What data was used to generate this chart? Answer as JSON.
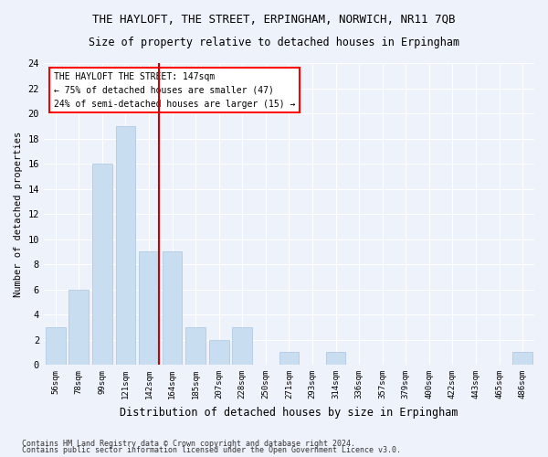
{
  "title": "THE HAYLOFT, THE STREET, ERPINGHAM, NORWICH, NR11 7QB",
  "subtitle": "Size of property relative to detached houses in Erpingham",
  "xlabel": "Distribution of detached houses by size in Erpingham",
  "ylabel": "Number of detached properties",
  "categories": [
    "56sqm",
    "78sqm",
    "99sqm",
    "121sqm",
    "142sqm",
    "164sqm",
    "185sqm",
    "207sqm",
    "228sqm",
    "250sqm",
    "271sqm",
    "293sqm",
    "314sqm",
    "336sqm",
    "357sqm",
    "379sqm",
    "400sqm",
    "422sqm",
    "443sqm",
    "465sqm",
    "486sqm"
  ],
  "values": [
    3,
    6,
    16,
    19,
    9,
    9,
    3,
    2,
    3,
    0,
    1,
    0,
    1,
    0,
    0,
    0,
    0,
    0,
    0,
    0,
    1
  ],
  "bar_color": "#c9ddf0",
  "bar_edge_color": "#a8c4e0",
  "highlight_color": "#cc0000",
  "highlight_index": 4,
  "annotation_text": "THE HAYLOFT THE STREET: 147sqm\n← 75% of detached houses are smaller (47)\n24% of semi-detached houses are larger (15) →",
  "ylim": [
    0,
    24
  ],
  "yticks": [
    0,
    2,
    4,
    6,
    8,
    10,
    12,
    14,
    16,
    18,
    20,
    22,
    24
  ],
  "footnote1": "Contains HM Land Registry data © Crown copyright and database right 2024.",
  "footnote2": "Contains public sector information licensed under the Open Government Licence v3.0.",
  "background_color": "#eef2fa",
  "grid_color": "#ffffff"
}
